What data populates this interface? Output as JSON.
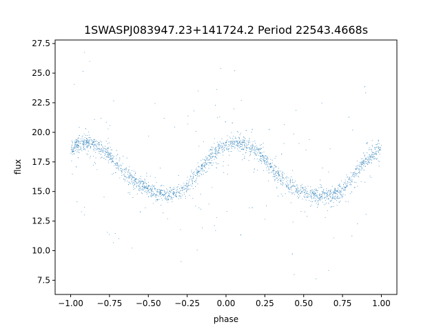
{
  "chart_data": {
    "type": "scatter",
    "title": "1SWASPJ083947.23+141724.2 Period 22543.4668s",
    "xlabel": "phase",
    "ylabel": "flux",
    "xlim": [
      -1.1,
      1.1
    ],
    "ylim": [
      6.3,
      27.8
    ],
    "xticks": [
      -1.0,
      -0.75,
      -0.5,
      -0.25,
      0.0,
      0.25,
      0.5,
      0.75,
      1.0
    ],
    "xtick_labels": [
      "−1.00",
      "−0.75",
      "−0.50",
      "−0.25",
      "0.00",
      "0.25",
      "0.50",
      "0.75",
      "1.00"
    ],
    "yticks": [
      7.5,
      10.0,
      12.5,
      15.0,
      17.5,
      20.0,
      22.5,
      25.0,
      27.5
    ],
    "ytick_labels": [
      "7.5",
      "10.0",
      "12.5",
      "15.0",
      "17.5",
      "20.0",
      "22.5",
      "25.0",
      "27.5"
    ],
    "grid": false,
    "marker_color": "#1f77b4",
    "series": [
      {
        "x": [
          -1.0,
          -0.95,
          -0.9,
          -0.85,
          -0.8,
          -0.75,
          -0.7,
          -0.65,
          -0.6,
          -0.55,
          -0.5,
          -0.45,
          -0.4,
          -0.35,
          -0.3,
          -0.25,
          -0.2,
          -0.15,
          -0.1,
          -0.05,
          0.0,
          0.05,
          0.1,
          0.15,
          0.2,
          0.25,
          0.3,
          0.35,
          0.4,
          0.45,
          0.5,
          0.55,
          0.6,
          0.65,
          0.7,
          0.75,
          0.8,
          0.85,
          0.9,
          0.95,
          1.0
        ],
        "y": [
          18.6,
          19.0,
          19.1,
          19.0,
          18.6,
          18.0,
          17.3,
          16.6,
          16.0,
          15.5,
          15.2,
          14.9,
          14.8,
          14.7,
          14.9,
          15.4,
          16.2,
          17.1,
          17.9,
          18.5,
          18.9,
          19.1,
          19.1,
          18.9,
          18.4,
          17.7,
          16.9,
          16.2,
          15.6,
          15.2,
          15.0,
          14.8,
          14.7,
          14.7,
          14.8,
          15.2,
          15.9,
          16.8,
          17.6,
          18.2,
          18.7
        ]
      }
    ]
  }
}
